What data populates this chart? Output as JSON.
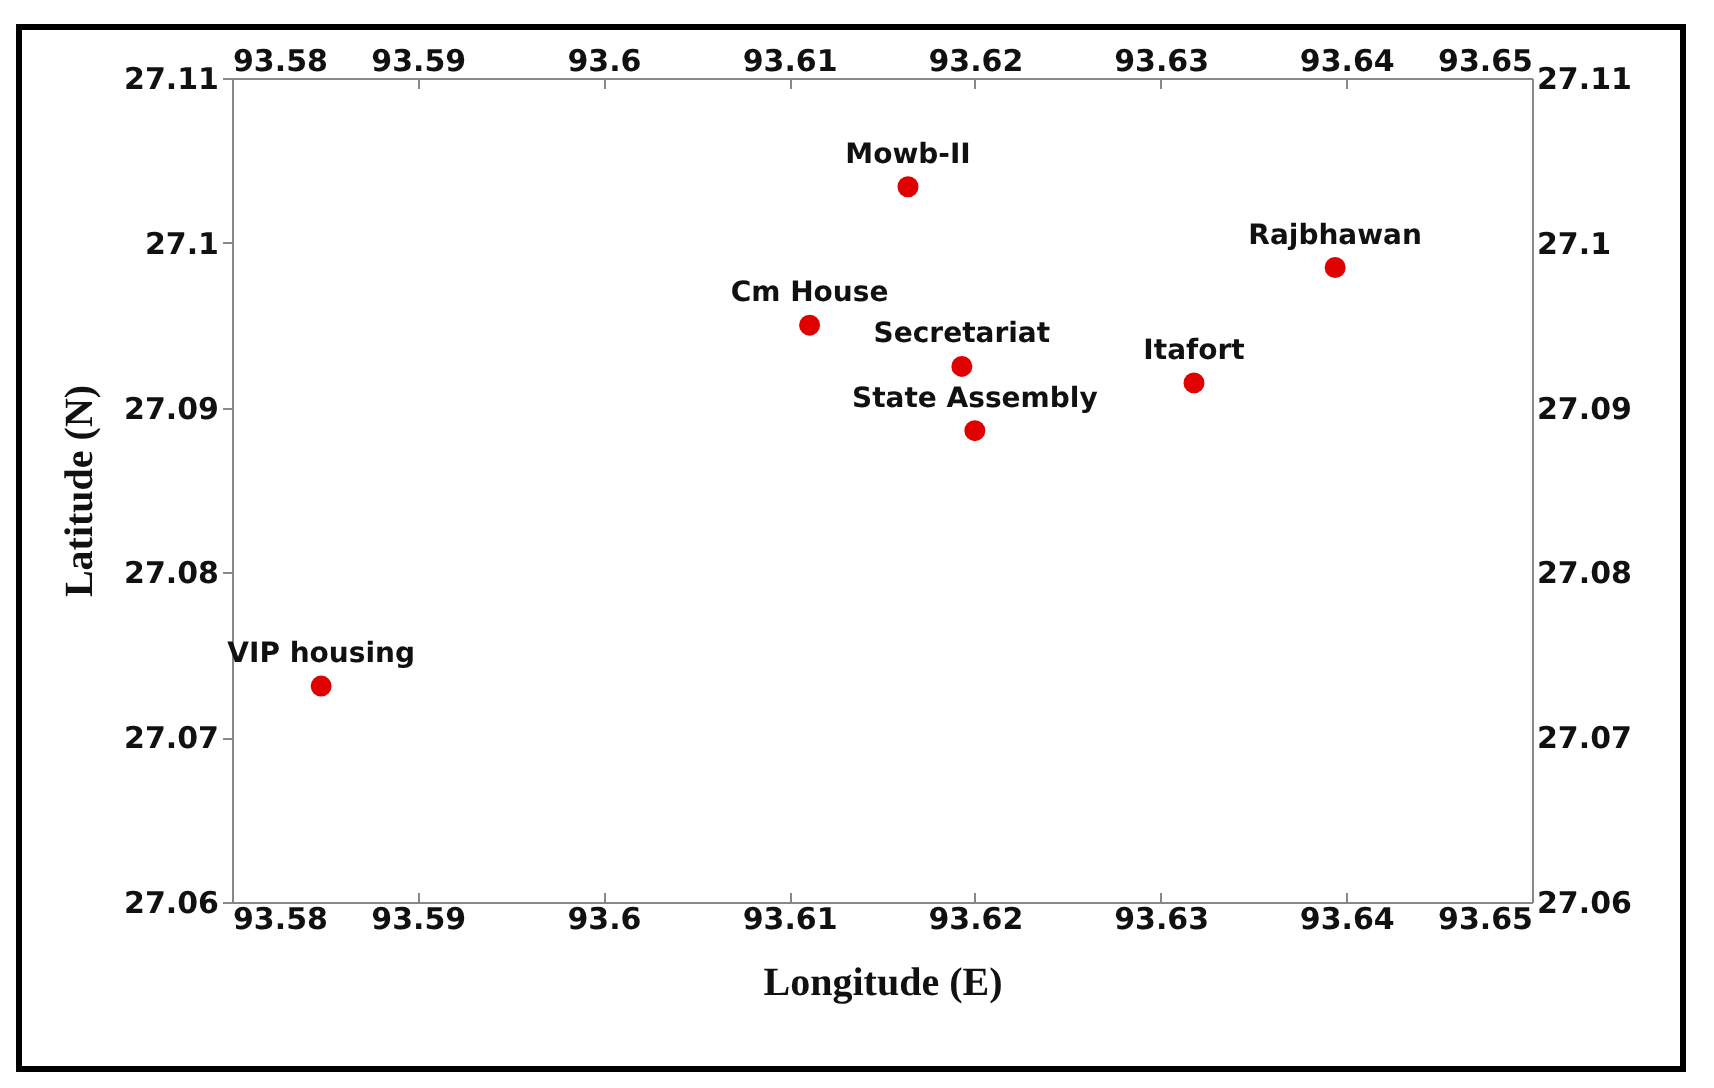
{
  "chart_data": {
    "type": "scatter",
    "xlabel": "Longitude (E)",
    "ylabel": "Latitude (N)",
    "x": [
      93.6164,
      93.6394,
      93.6111,
      93.6193,
      93.6318,
      93.62,
      93.5848
    ],
    "series": [
      {
        "color": "#e00000",
        "values": [
          27.1034,
          27.0985,
          27.095,
          27.0925,
          27.0915,
          27.0886,
          27.0731
        ]
      }
    ],
    "marker": "circle",
    "annotations": [
      {
        "text": "Mowb-II",
        "x": 93.6164,
        "y": 27.1034
      },
      {
        "text": "Rajbhawan",
        "x": 93.6394,
        "y": 27.0985
      },
      {
        "text": "Cm House",
        "x": 93.6111,
        "y": 27.095
      },
      {
        "text": "Secretariat",
        "x": 93.6193,
        "y": 27.0925
      },
      {
        "text": "Itafort",
        "x": 93.6318,
        "y": 27.0915
      },
      {
        "text": "State Assembly",
        "x": 93.62,
        "y": 27.0886
      },
      {
        "text": "VIP housing",
        "x": 93.5848,
        "y": 27.0731
      }
    ],
    "xlim": [
      93.58,
      93.65
    ],
    "xticks": [
      93.58,
      93.59,
      93.6,
      93.61,
      93.62,
      93.63,
      93.64,
      93.65
    ],
    "x2lim": [
      93.58,
      93.65
    ],
    "x2ticks": [
      93.58,
      93.59,
      93.6,
      93.61,
      93.62,
      93.63,
      93.64,
      93.65
    ],
    "ylim": [
      27.06,
      27.11
    ],
    "yticks": [
      27.06,
      27.07,
      27.08,
      27.09,
      27.1,
      27.11
    ],
    "y2lim": [
      27.06,
      27.11
    ],
    "y2ticks": [
      27.06,
      27.07,
      27.08,
      27.09,
      27.1,
      27.11
    ],
    "grid": false,
    "legend": false
  }
}
